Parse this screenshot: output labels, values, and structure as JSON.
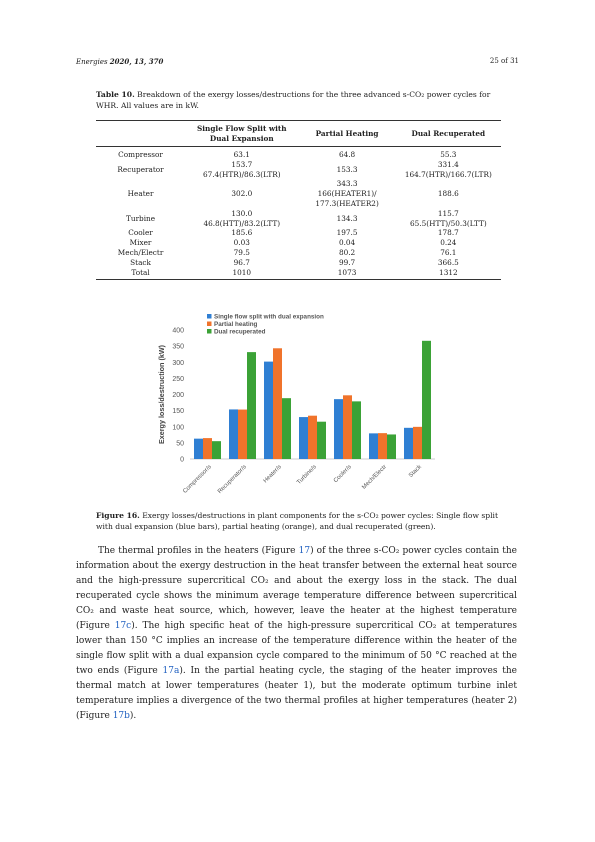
{
  "header": {
    "journal": "Energies",
    "citation": "2020, 13, 370",
    "page": "25 of 31"
  },
  "table": {
    "label": "Table 10.",
    "caption": "Breakdown of the exergy losses/destructions for the three advanced s-CO₂ power cycles for WHR. All values are in kW.",
    "columns": [
      "",
      "Single Flow Split with Dual Expansion",
      "Partial Heating",
      "Dual Recuperated"
    ],
    "rows": [
      [
        "Compressor",
        "63.1",
        "64.8",
        "55.3"
      ],
      [
        "Recuperator",
        "153.7\n67.4(HTR)/86.3(LTR)",
        "153.3",
        "331.4\n164.7(HTR)/166.7(LTR)"
      ],
      [
        "Heater",
        "302.0",
        "343.3\n166(HEATER1)/\n177.3(HEATER2)",
        "188.6"
      ],
      [
        "Turbine",
        "130.0\n46.8(HTT)/83.2(LTT)",
        "134.3",
        "115.7\n65.5(HTT)/50.3(LTT)"
      ],
      [
        "Cooler",
        "185.6",
        "197.5",
        "178.7"
      ],
      [
        "Mixer",
        "0.03",
        "0.04",
        "0.24"
      ],
      [
        "Mech/Electr",
        "79.5",
        "80.2",
        "76.1"
      ],
      [
        "Stack",
        "96.7",
        "99.7",
        "366.5"
      ],
      [
        "Total",
        "1010",
        "1073",
        "1312"
      ]
    ]
  },
  "chart_data": {
    "type": "bar",
    "categories": [
      "Compressor/s",
      "Recuperator/s",
      "Heater/s",
      "Turbine/s",
      "Cooler/s",
      "Mech/Electr",
      "Stack"
    ],
    "series": [
      {
        "name": "Single flow split with dual expansion",
        "color": "#2f7fd3",
        "values": [
          63.1,
          153.7,
          302.0,
          130.0,
          185.6,
          79.5,
          96.7
        ]
      },
      {
        "name": "Partial heating",
        "color": "#f0732b",
        "values": [
          64.8,
          153.3,
          343.3,
          134.3,
          197.5,
          80.2,
          99.7
        ]
      },
      {
        "name": "Dual recuperated",
        "color": "#3ba236",
        "values": [
          55.3,
          331.4,
          188.6,
          115.7,
          178.7,
          76.1,
          366.5
        ]
      }
    ],
    "ylabel": "Exergy loss/destruction (kW)",
    "xlabel": "",
    "ylim": [
      0,
      400
    ],
    "yticks": [
      0,
      50,
      100,
      150,
      200,
      250,
      300,
      350,
      400
    ],
    "legend": "top-left",
    "grid": false
  },
  "figure": {
    "label": "Figure 16.",
    "caption": "Exergy losses/destructions in plant components for the s-CO₂ power cycles: Single flow split with dual expansion (blue bars), partial heating (orange), and dual recuperated (green)."
  },
  "body": {
    "p1_a": "The thermal profiles in the heaters (Figure ",
    "ref1": "17",
    "p1_b": ") of the three s-CO₂ power cycles contain the information about the exergy destruction in the heat transfer between the external heat source and the high-pressure supercritical CO₂ and about the exergy loss in the stack. The dual recuperated cycle shows the minimum average temperature difference between supercritical CO₂ and waste heat source, which, however, leave the heater at the highest temperature (Figure ",
    "ref2": "17c",
    "p1_c": "). The high specific heat of the high-pressure supercritical CO₂ at temperatures lower than 150 °C implies an increase of the temperature difference within the heater of the single flow split with a dual expansion cycle compared to the minimum of 50 °C reached at the two ends (Figure ",
    "ref3": "17a",
    "p1_d": "). In the partial heating cycle, the staging of the heater improves the thermal match at lower temperatures (heater 1), but the moderate optimum turbine inlet temperature implies a divergence of the two thermal profiles at higher temperatures (heater 2) (Figure ",
    "ref4": "17b",
    "p1_e": ")."
  }
}
